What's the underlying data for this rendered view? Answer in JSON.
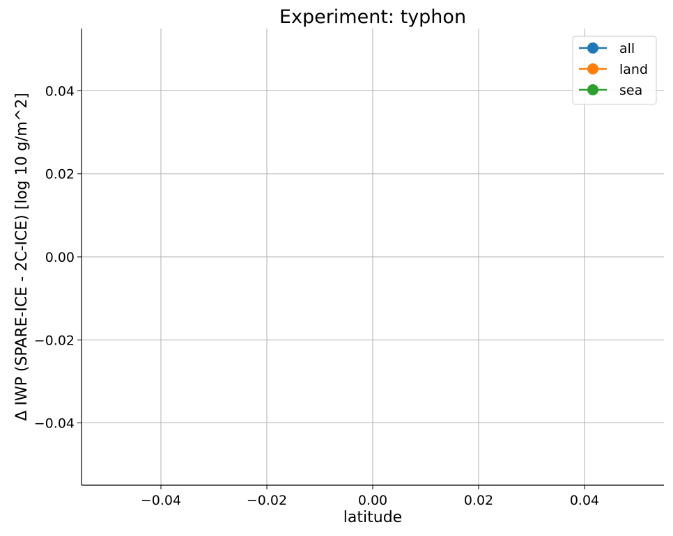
{
  "chart_data": {
    "type": "line",
    "title": "Experiment: typhon",
    "xlabel": "latitude",
    "ylabel": "Δ IWP (SPARE-ICE - 2C-ICE) [log 10 g/m^2]",
    "xlim": [
      -0.055,
      0.055
    ],
    "ylim": [
      -0.055,
      0.055
    ],
    "x_ticks": [
      -0.04,
      -0.02,
      0.0,
      0.02,
      0.04
    ],
    "y_ticks": [
      -0.04,
      -0.02,
      0.0,
      0.02,
      0.04
    ],
    "x_tick_labels": [
      "−0.04",
      "−0.02",
      "0.00",
      "0.02",
      "0.04"
    ],
    "y_tick_labels": [
      "−0.04",
      "−0.02",
      "0.00",
      "0.02",
      "0.04"
    ],
    "grid": true,
    "legend_position": "top-right",
    "series": [
      {
        "name": "all",
        "color": "#1f77b4",
        "marker": "circle",
        "x": [],
        "y": []
      },
      {
        "name": "land",
        "color": "#ff7f0e",
        "marker": "circle",
        "x": [],
        "y": []
      },
      {
        "name": "sea",
        "color": "#2ca02c",
        "marker": "circle",
        "x": [],
        "y": []
      }
    ]
  }
}
